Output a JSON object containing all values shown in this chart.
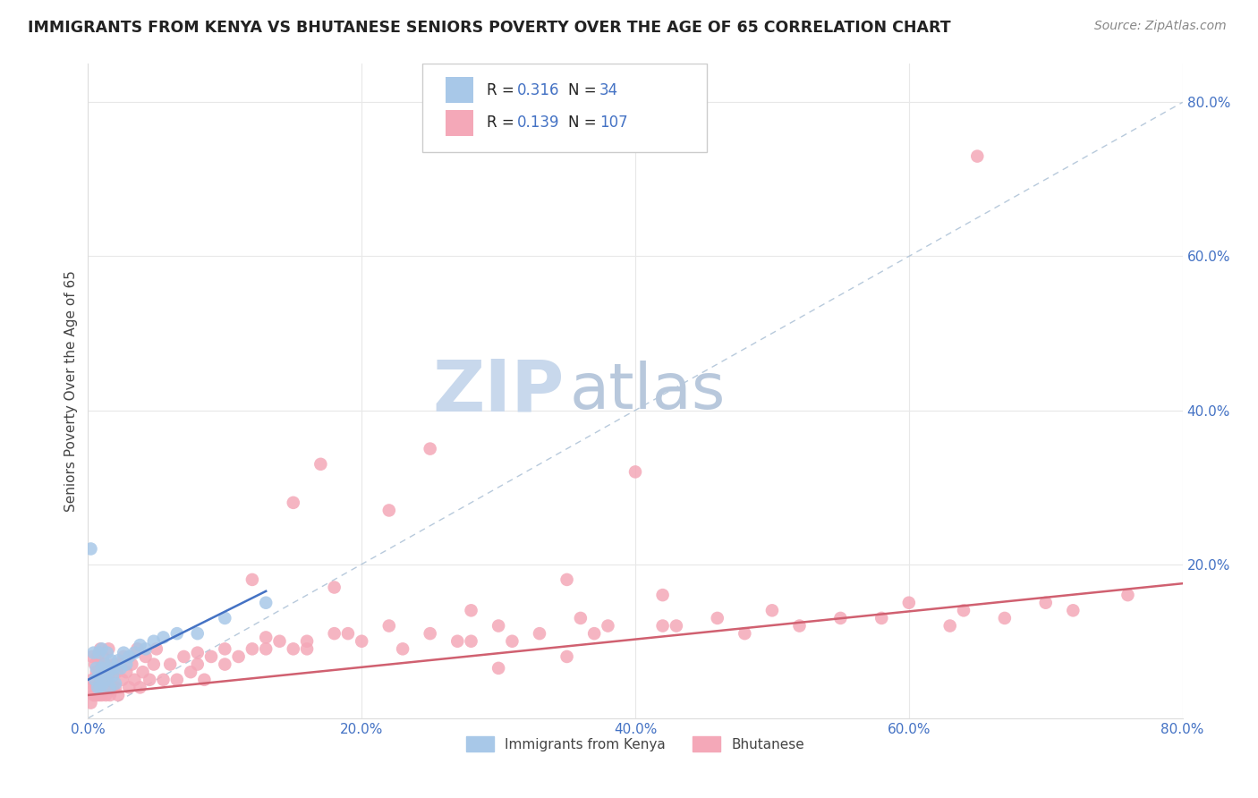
{
  "title": "IMMIGRANTS FROM KENYA VS BHUTANESE SENIORS POVERTY OVER THE AGE OF 65 CORRELATION CHART",
  "source": "Source: ZipAtlas.com",
  "ylabel": "Seniors Poverty Over the Age of 65",
  "xlim": [
    0.0,
    0.8
  ],
  "ylim": [
    0.0,
    0.85
  ],
  "kenya_R": 0.316,
  "kenya_N": 34,
  "bhutan_R": 0.139,
  "bhutan_N": 107,
  "kenya_color": "#a8c8e8",
  "bhutan_color": "#f4a8b8",
  "kenya_line_color": "#4472c4",
  "bhutan_line_color": "#d06070",
  "watermark_zip_color": "#c8d8ec",
  "watermark_atlas_color": "#b8c8dc",
  "background_color": "#ffffff",
  "grid_color": "#e8e8e8",
  "title_color": "#222222",
  "source_color": "#888888",
  "tick_color": "#4472c4",
  "label_color": "#444444",
  "legend_text_color": "#222222",
  "legend_rn_color": "#4472c4",
  "kenya_x": [
    0.002,
    0.004,
    0.005,
    0.006,
    0.007,
    0.008,
    0.008,
    0.009,
    0.01,
    0.01,
    0.011,
    0.012,
    0.013,
    0.014,
    0.015,
    0.016,
    0.017,
    0.018,
    0.019,
    0.02,
    0.022,
    0.024,
    0.026,
    0.028,
    0.03,
    0.034,
    0.038,
    0.042,
    0.048,
    0.055,
    0.065,
    0.08,
    0.1,
    0.13
  ],
  "kenya_y": [
    0.22,
    0.085,
    0.05,
    0.065,
    0.04,
    0.055,
    0.085,
    0.04,
    0.065,
    0.09,
    0.045,
    0.07,
    0.05,
    0.085,
    0.06,
    0.04,
    0.075,
    0.055,
    0.065,
    0.045,
    0.075,
    0.065,
    0.085,
    0.07,
    0.08,
    0.085,
    0.095,
    0.09,
    0.1,
    0.105,
    0.11,
    0.11,
    0.13,
    0.15
  ],
  "bhutan_x": [
    0.001,
    0.002,
    0.003,
    0.003,
    0.004,
    0.005,
    0.005,
    0.006,
    0.006,
    0.007,
    0.007,
    0.008,
    0.008,
    0.009,
    0.009,
    0.01,
    0.01,
    0.011,
    0.011,
    0.012,
    0.013,
    0.013,
    0.014,
    0.015,
    0.015,
    0.016,
    0.017,
    0.018,
    0.019,
    0.02,
    0.021,
    0.022,
    0.023,
    0.025,
    0.026,
    0.028,
    0.03,
    0.032,
    0.034,
    0.036,
    0.038,
    0.04,
    0.042,
    0.045,
    0.048,
    0.05,
    0.055,
    0.06,
    0.065,
    0.07,
    0.075,
    0.08,
    0.085,
    0.09,
    0.1,
    0.11,
    0.12,
    0.13,
    0.14,
    0.15,
    0.16,
    0.18,
    0.2,
    0.22,
    0.25,
    0.28,
    0.3,
    0.33,
    0.36,
    0.38,
    0.42,
    0.46,
    0.5,
    0.55,
    0.6,
    0.65,
    0.7,
    0.22,
    0.28,
    0.35,
    0.4,
    0.12,
    0.15,
    0.17,
    0.25,
    0.3,
    0.35,
    0.08,
    0.1,
    0.13,
    0.16,
    0.19,
    0.23,
    0.27,
    0.31,
    0.37,
    0.43,
    0.48,
    0.52,
    0.58,
    0.63,
    0.67,
    0.72,
    0.76,
    0.64,
    0.42,
    0.18
  ],
  "bhutan_y": [
    0.04,
    0.02,
    0.05,
    0.08,
    0.03,
    0.04,
    0.07,
    0.03,
    0.06,
    0.04,
    0.08,
    0.03,
    0.06,
    0.04,
    0.09,
    0.03,
    0.07,
    0.04,
    0.08,
    0.05,
    0.03,
    0.07,
    0.04,
    0.05,
    0.09,
    0.03,
    0.06,
    0.04,
    0.07,
    0.04,
    0.06,
    0.03,
    0.07,
    0.05,
    0.08,
    0.06,
    0.04,
    0.07,
    0.05,
    0.09,
    0.04,
    0.06,
    0.08,
    0.05,
    0.07,
    0.09,
    0.05,
    0.07,
    0.05,
    0.08,
    0.06,
    0.07,
    0.05,
    0.08,
    0.07,
    0.08,
    0.09,
    0.09,
    0.1,
    0.09,
    0.1,
    0.11,
    0.1,
    0.12,
    0.11,
    0.1,
    0.12,
    0.11,
    0.13,
    0.12,
    0.12,
    0.13,
    0.14,
    0.13,
    0.15,
    0.73,
    0.15,
    0.27,
    0.14,
    0.18,
    0.32,
    0.18,
    0.28,
    0.33,
    0.35,
    0.065,
    0.08,
    0.085,
    0.09,
    0.105,
    0.09,
    0.11,
    0.09,
    0.1,
    0.1,
    0.11,
    0.12,
    0.11,
    0.12,
    0.13,
    0.12,
    0.13,
    0.14,
    0.16,
    0.14,
    0.16,
    0.17
  ],
  "kenya_line_x0": 0.0,
  "kenya_line_x1": 0.13,
  "kenya_line_y0": 0.05,
  "kenya_line_y1": 0.165,
  "bhutan_line_x0": 0.0,
  "bhutan_line_x1": 0.8,
  "bhutan_line_y0": 0.03,
  "bhutan_line_y1": 0.175
}
